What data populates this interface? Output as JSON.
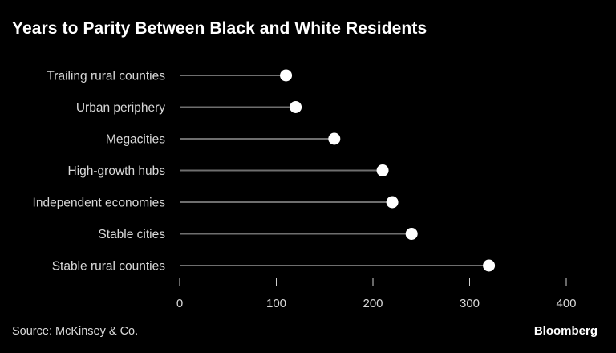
{
  "title": "Years to Parity Between Black and White Residents",
  "source": "Source: McKinsey & Co.",
  "brand": "Bloomberg",
  "colors": {
    "background": "#000000",
    "stem": "#6e6e6e",
    "dot": "#ffffff",
    "text": "#d9d9d9"
  },
  "chart_data": {
    "type": "lollipop",
    "title": "Years to Parity Between Black and White Residents",
    "categories": [
      "Trailing rural counties",
      "Urban periphery",
      "Megacities",
      "High-growth hubs",
      "Independent economies",
      "Stable cities",
      "Stable rural counties"
    ],
    "values": [
      110,
      120,
      160,
      210,
      220,
      240,
      320
    ],
    "xlim": [
      0,
      400
    ],
    "xticks": [
      0,
      100,
      200,
      300,
      400
    ],
    "xlabel": "",
    "ylabel": "",
    "grid": false,
    "legend": "none"
  }
}
